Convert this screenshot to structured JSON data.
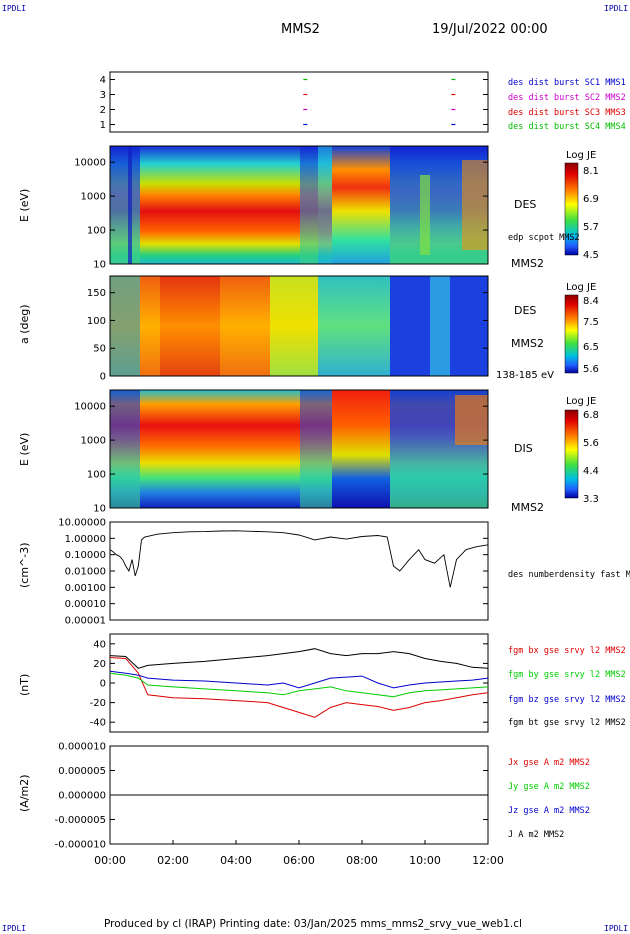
{
  "header": {
    "corner_left": "IPDLI",
    "corner_right": "IPDLI",
    "title": "MMS2",
    "date": "19/Jul/2022 00:00"
  },
  "footer": {
    "text": "Produced by cl (IRAP)   Printing date: 03/Jan/2025   mms_mms2_srvy_vue_web1.cl",
    "corner_left": "IPDLI",
    "corner_right": "IPDLI"
  },
  "colors": {
    "mms1": "#0000cc",
    "mms2": "#cc00cc",
    "mms3": "#dd0000",
    "mms4": "#00bb00",
    "x": "#dd0000",
    "y": "#00cc00",
    "z": "#0000cc",
    "t": "#000000"
  },
  "chart_data": [
    {
      "type": "scatter",
      "id": "burst",
      "x_label_ticks": [
        "00:00",
        "02:00",
        "04:00",
        "06:00",
        "08:00",
        "10:00",
        "12:00"
      ],
      "x_range_hours": [
        0,
        12
      ],
      "ylim": [
        0.5,
        4.5
      ],
      "yticks": [
        "1",
        "2",
        "3",
        "4"
      ],
      "legend": [
        "des dist burst SC1 MMS1",
        "des dist burst SC2 MMS2",
        "des dist burst SC3 MMS3",
        "des dist burst SC4 MMS4"
      ],
      "series": [
        {
          "sc": 1,
          "x": [
            6.2,
            10.9
          ]
        },
        {
          "sc": 2,
          "x": [
            6.2,
            10.9
          ]
        },
        {
          "sc": 3,
          "x": [
            6.2,
            10.9
          ]
        },
        {
          "sc": 4,
          "x": [
            6.2,
            10.9
          ]
        }
      ]
    },
    {
      "type": "heatmap",
      "id": "des_energy",
      "ylabel": "E (eV)",
      "yscale": "log",
      "ylim": [
        10,
        30000
      ],
      "yticks": [
        "10",
        "100",
        "1000",
        "10000"
      ],
      "label": "DES",
      "sublabel": "MMS2",
      "overlay": "edp scpot MMS2",
      "colorbar": {
        "title": "Log JE",
        "ticks": [
          "8.1",
          "6.9",
          "5.7",
          "4.5"
        ]
      }
    },
    {
      "type": "heatmap",
      "id": "des_pitch",
      "ylabel": "a (deg)",
      "ylim": [
        0,
        180
      ],
      "yticks": [
        "0",
        "50",
        "100",
        "150"
      ],
      "label": "DES",
      "sublabel": "MMS2",
      "energy_range": "138-185 eV",
      "colorbar": {
        "title": "Log JE",
        "ticks": [
          "8.4",
          "7.5",
          "6.5",
          "5.6"
        ]
      }
    },
    {
      "type": "heatmap",
      "id": "dis_energy",
      "ylabel": "E (eV)",
      "yscale": "log",
      "ylim": [
        10,
        30000
      ],
      "yticks": [
        "10",
        "100",
        "1000",
        "10000"
      ],
      "label": "DIS",
      "sublabel": "MMS2",
      "colorbar": {
        "title": "Log JE",
        "ticks": [
          "6.8",
          "5.6",
          "4.4",
          "3.3"
        ]
      }
    },
    {
      "type": "line",
      "id": "density",
      "ylabel": "(cm^-3)",
      "yscale": "log",
      "ylim": [
        1e-05,
        10
      ],
      "yticks": [
        "0.00001",
        "0.00010",
        "0.00100",
        "0.01000",
        "0.10000",
        "1.00000",
        "10.00000"
      ],
      "legend": [
        "des numberdensity fast M"
      ],
      "series": [
        {
          "x": [
            0.0,
            0.1,
            0.2,
            0.3,
            0.4,
            0.5,
            0.6,
            0.7,
            0.8,
            0.9,
            1.0,
            1.1,
            1.5,
            2.0,
            2.5,
            3.0,
            3.5,
            4.0,
            4.5,
            5.0,
            5.5,
            6.0,
            6.5,
            7.0,
            7.5,
            8.0,
            8.5,
            8.8,
            9.0,
            9.2,
            9.5,
            9.8,
            10.0,
            10.3,
            10.6,
            10.8,
            11.0,
            11.3,
            11.6,
            12.0
          ],
          "y": [
            0.2,
            0.15,
            0.1,
            0.08,
            0.05,
            0.02,
            0.01,
            0.05,
            0.005,
            0.02,
            0.8,
            1.2,
            1.8,
            2.2,
            2.5,
            2.6,
            2.8,
            2.9,
            2.7,
            2.5,
            2.2,
            1.6,
            0.8,
            1.2,
            0.9,
            1.3,
            1.5,
            1.2,
            0.02,
            0.01,
            0.05,
            0.2,
            0.05,
            0.03,
            0.1,
            0.001,
            0.05,
            0.2,
            0.3,
            0.4
          ]
        }
      ]
    },
    {
      "type": "line",
      "id": "bfield",
      "ylabel": "(nT)",
      "ylim": [
        -50,
        50
      ],
      "yticks": [
        "-40",
        "-20",
        "0",
        "20",
        "40"
      ],
      "legend": [
        "fgm bx gse srvy l2 MMS2",
        "fgm by gse srvy l2 MMS2",
        "fgm bz gse srvy l2 MMS2",
        "fgm bt gse srvy l2 MMS2"
      ],
      "x": [
        0,
        0.5,
        0.9,
        1.2,
        2,
        3,
        4,
        5,
        5.5,
        6,
        6.5,
        7,
        7.5,
        8,
        8.5,
        9,
        9.5,
        10,
        10.5,
        11,
        11.5,
        12
      ],
      "series": [
        {
          "name": "bx",
          "values": [
            26,
            25,
            10,
            -12,
            -15,
            -16,
            -18,
            -20,
            -25,
            -30,
            -35,
            -25,
            -20,
            -22,
            -24,
            -28,
            -25,
            -20,
            -18,
            -15,
            -12,
            -10
          ]
        },
        {
          "name": "by",
          "values": [
            10,
            8,
            5,
            -2,
            -4,
            -6,
            -8,
            -10,
            -12,
            -8,
            -6,
            -4,
            -8,
            -10,
            -12,
            -14,
            -10,
            -8,
            -7,
            -6,
            -5,
            -4
          ]
        },
        {
          "name": "bz",
          "values": [
            12,
            10,
            8,
            5,
            3,
            2,
            0,
            -2,
            0,
            -5,
            0,
            5,
            6,
            7,
            0,
            -5,
            -2,
            0,
            1,
            2,
            3,
            5
          ]
        },
        {
          "name": "bt",
          "values": [
            28,
            27,
            15,
            18,
            20,
            22,
            25,
            28,
            30,
            32,
            35,
            30,
            28,
            30,
            30,
            32,
            30,
            25,
            22,
            20,
            16,
            15
          ]
        }
      ]
    },
    {
      "type": "line",
      "id": "current",
      "ylabel": "(A/m2)",
      "ylim": [
        -1e-05,
        1e-05
      ],
      "yticks": [
        "-0.000010",
        "-0.000005",
        "0.000000",
        "0.000005",
        "0.000010"
      ],
      "legend": [
        "Jx gse A m2 MMS2",
        "Jy gse A m2 MMS2",
        "Jz gse A m2 MMS2",
        "J A m2 MMS2"
      ],
      "x": [
        0,
        12
      ],
      "series": [
        {
          "name": "J",
          "values": [
            0,
            0
          ]
        }
      ]
    }
  ]
}
